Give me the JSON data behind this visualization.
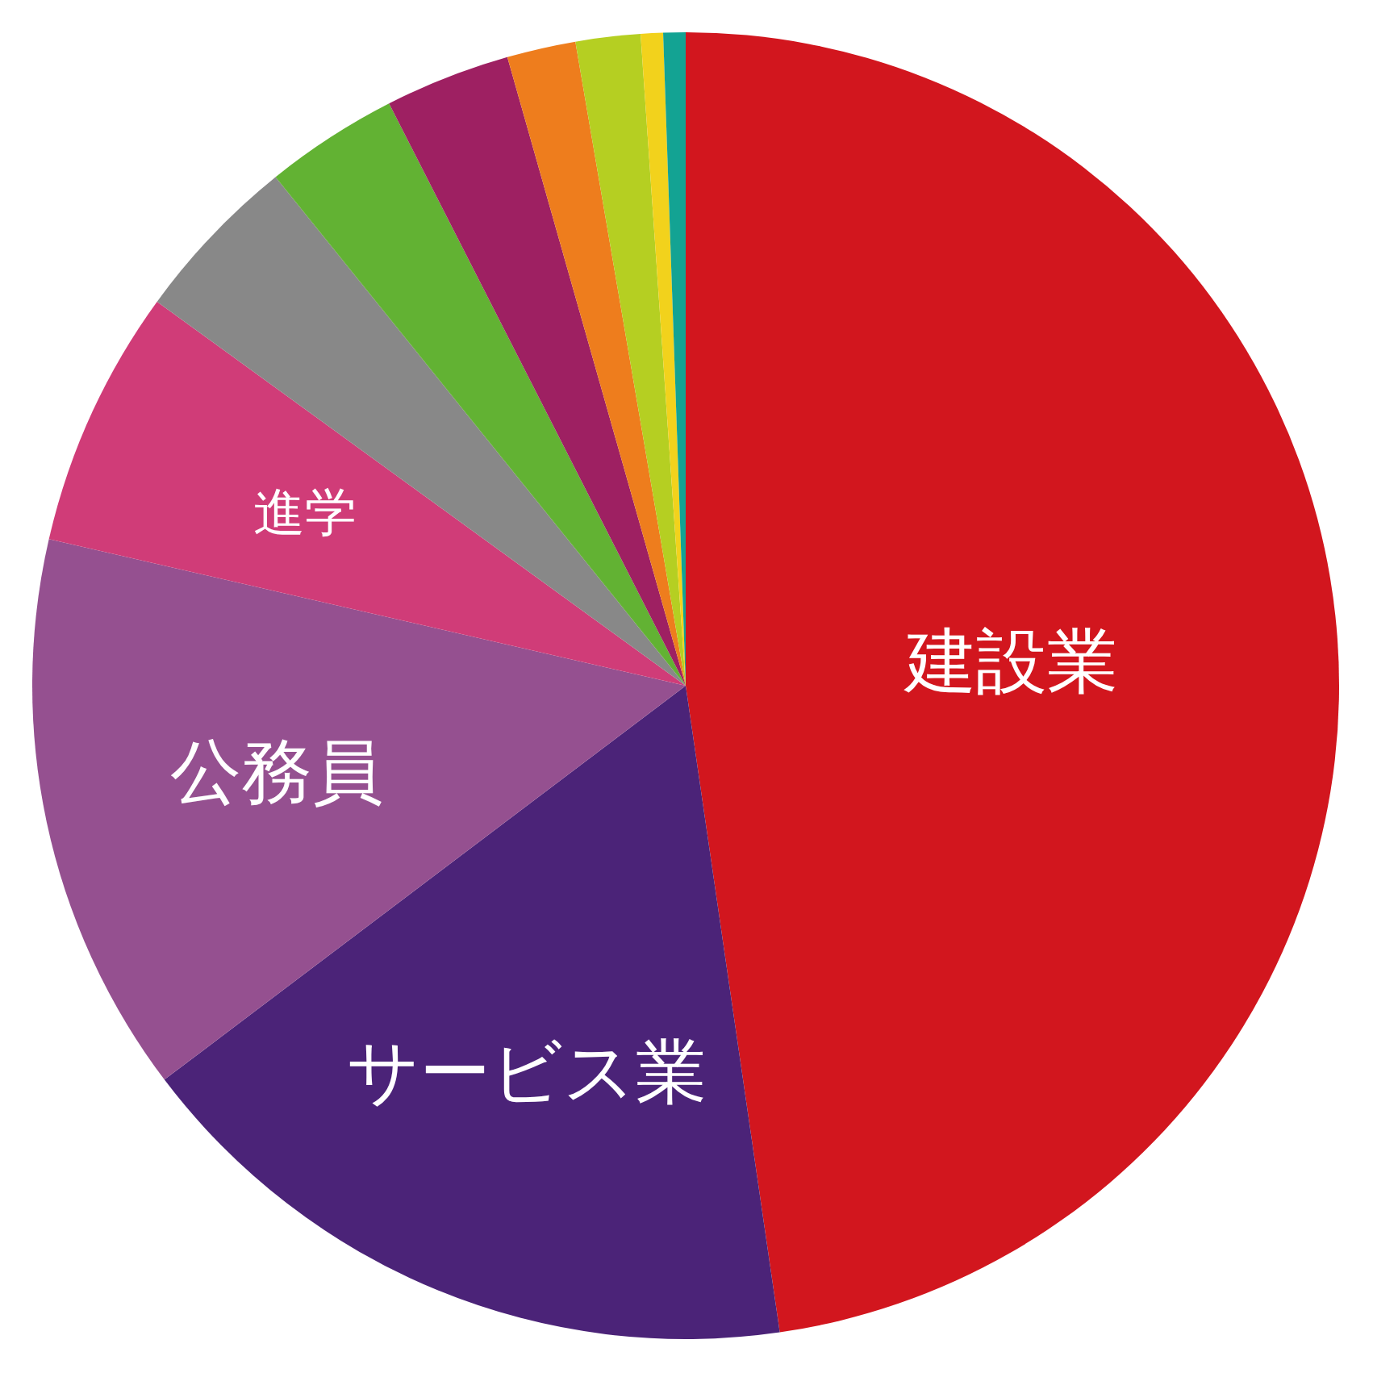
{
  "chart_data": {
    "type": "pie",
    "categories": [
      "建設業",
      "サービス業",
      "公務員",
      "進学",
      null,
      null,
      null,
      null,
      null,
      null,
      null
    ],
    "values": [
      47.7,
      17.0,
      13.9,
      6.4,
      4.2,
      3.3,
      3.1,
      1.7,
      1.6,
      0.55,
      0.55
    ],
    "colors": [
      "#d2161e",
      "#4b2378",
      "#955090",
      "#d03c78",
      "#888888",
      "#62b233",
      "#9e2062",
      "#ee7d1d",
      "#b5cf22",
      "#f2d21c",
      "#13a393"
    ]
  }
}
